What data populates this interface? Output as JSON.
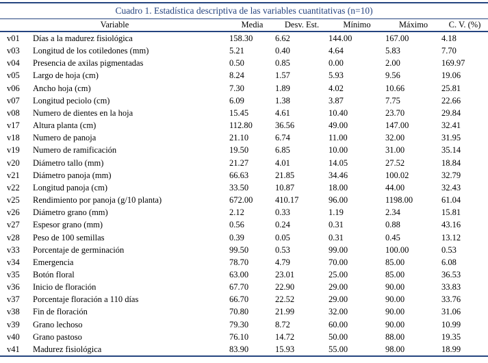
{
  "title": "Cuadro 1. Estadística descriptiva de las variables cuantitativas (n=10)",
  "colors": {
    "accent_navy": "#25447F",
    "text": "#000000",
    "background": "#FFFFFF"
  },
  "table": {
    "headers": [
      "Variable",
      "Media",
      "Desv. Est.",
      "Mínimo",
      "Máximo",
      "C. V. (%)"
    ],
    "rows": [
      [
        "v01",
        "Días a la madurez fisiológica",
        "158.30",
        "6.62",
        "144.00",
        "167.00",
        "4.18"
      ],
      [
        "v03",
        "Longitud de los cotiledones (mm)",
        "5.21",
        "0.40",
        "4.64",
        "5.83",
        "7.70"
      ],
      [
        "v04",
        "Presencia de axilas pigmentadas",
        "0.50",
        "0.85",
        "0.00",
        "2.00",
        "169.97"
      ],
      [
        "v05",
        "Largo de hoja (cm)",
        "8.24",
        "1.57",
        "5.93",
        "9.56",
        "19.06"
      ],
      [
        "v06",
        "Ancho hoja (cm)",
        "7.30",
        "1.89",
        "4.02",
        "10.66",
        "25.81"
      ],
      [
        "v07",
        "Longitud peciolo (cm)",
        "6.09",
        "1.38",
        "3.87",
        "7.75",
        "22.66"
      ],
      [
        "v08",
        "Numero de dientes en la hoja",
        "15.45",
        "4.61",
        "10.40",
        "23.70",
        "29.84"
      ],
      [
        "v17",
        "Altura planta (cm)",
        "112.80",
        "36.56",
        "49.00",
        "147.00",
        "32.41"
      ],
      [
        "v18",
        "Numero de panoja",
        "21.10",
        "6.74",
        "11.00",
        "32.00",
        "31.95"
      ],
      [
        "v19",
        "Numero de ramificación",
        "19.50",
        "6.85",
        "10.00",
        "31.00",
        "35.14"
      ],
      [
        "v20",
        "Diámetro tallo (mm)",
        "21.27",
        "4.01",
        "14.05",
        "27.52",
        "18.84"
      ],
      [
        "v21",
        "Diámetro panoja (mm)",
        "66.63",
        "21.85",
        "34.46",
        "100.02",
        "32.79"
      ],
      [
        "v22",
        "Longitud panoja (cm)",
        "33.50",
        "10.87",
        "18.00",
        "44.00",
        "32.43"
      ],
      [
        "v25",
        "Rendimiento por panoja (g/10 planta)",
        "672.00",
        "410.17",
        "96.00",
        "1198.00",
        "61.04"
      ],
      [
        "v26",
        "Diámetro grano (mm)",
        "2.12",
        "0.33",
        "1.19",
        "2.34",
        "15.81"
      ],
      [
        "v27",
        "Espesor grano (mm)",
        "0.56",
        "0.24",
        "0.31",
        "0.88",
        "43.16"
      ],
      [
        "v28",
        "Peso de 100 semillas",
        "0.39",
        "0.05",
        "0.31",
        "0.45",
        "13.12"
      ],
      [
        "v33",
        "Porcentaje de germinación",
        "99.50",
        "0.53",
        "99.00",
        "100.00",
        "0.53"
      ],
      [
        "v34",
        "Emergencia",
        "78.70",
        "4.79",
        "70.00",
        "85.00",
        "6.08"
      ],
      [
        "v35",
        "Botón floral",
        "63.00",
        "23.01",
        "25.00",
        "85.00",
        "36.53"
      ],
      [
        "v36",
        "Inicio de floración",
        "67.70",
        "22.90",
        "29.00",
        "90.00",
        "33.83"
      ],
      [
        "v37",
        "Porcentaje floración a 110 días",
        "66.70",
        "22.52",
        "29.00",
        "90.00",
        "33.76"
      ],
      [
        "v38",
        "Fin de floración",
        "70.80",
        "21.99",
        "32.00",
        "90.00",
        "31.06"
      ],
      [
        "v39",
        "Grano lechoso",
        "79.30",
        "8.72",
        "60.00",
        "90.00",
        "10.99"
      ],
      [
        "v40",
        "Grano pastoso",
        "76.10",
        "14.72",
        "50.00",
        "88.00",
        "19.35"
      ],
      [
        "v41",
        "Madurez fisiológica",
        "83.90",
        "15.93",
        "55.00",
        "98.00",
        "18.99"
      ]
    ]
  }
}
